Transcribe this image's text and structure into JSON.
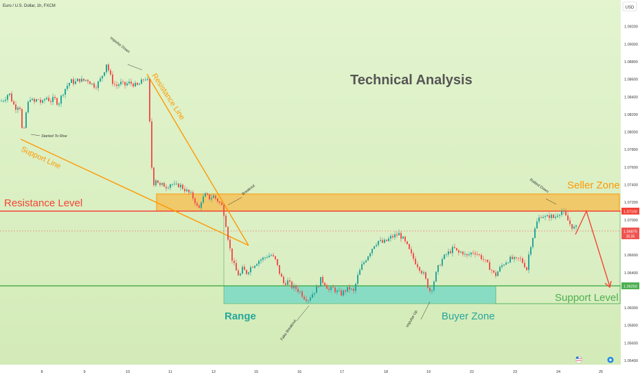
{
  "header": {
    "symbol_title": "Euro / U.S. Dollar, 1h, FXCM",
    "currency_badge": "USD"
  },
  "annotations": {
    "technical_analysis": "Technical Analysis",
    "impulse_down": "Impulse Down",
    "started_to_rise": "Started To Rise",
    "support_line": "Support Line",
    "resistance_line": "Resistance Line",
    "resistance_level": "Resistance Level",
    "breakout": "Breakout",
    "rallied_down": "Rallied Down",
    "seller_zone": "Seller Zone",
    "range": "Range",
    "fake_breakout": "Fake Breakout",
    "impulse_up": "Impulse Up",
    "buyer_zone": "Buyer Zone",
    "support_level": "Support Level"
  },
  "price_tags": {
    "resistance": "1.07100",
    "current_price": "1.06875",
    "countdown": "35:35",
    "support": "1.06250"
  },
  "colors": {
    "background_top": "#dff2c8",
    "background_bottom": "#d6edbd",
    "up_candle": "#26a69a",
    "down_candle": "#ef5350",
    "resistance": "#f44336",
    "support": "#4caf50",
    "orange": "#ff9800",
    "seller_zone_fill": "#f2c25a",
    "buyer_zone_fill": "#76d6bf",
    "text_gray": "#555555"
  },
  "chart_data": {
    "type": "candlestick",
    "title": "Euro / U.S. Dollar, 1h, FXCM",
    "x_tick_labels": [
      "8",
      "9",
      "10",
      "11",
      "12",
      "15",
      "16",
      "17",
      "18",
      "19",
      "22",
      "23",
      "24",
      "25"
    ],
    "y_tick_labels": [
      "1.09200",
      "1.09000",
      "1.08800",
      "1.08600",
      "1.08400",
      "1.08200",
      "1.08000",
      "1.07800",
      "1.07600",
      "1.07400",
      "1.07200",
      "1.07000",
      "1.06600",
      "1.06400",
      "1.06000",
      "1.05800",
      "1.05600",
      "1.05400"
    ],
    "ylim": [
      1.054,
      1.094
    ],
    "resistance_level": 1.071,
    "support_level": 1.0625,
    "current_price": 1.06875,
    "seller_zone": [
      1.071,
      1.0728
    ],
    "buyer_zone": [
      1.0605,
      1.0625
    ],
    "grid": false,
    "price_path": [
      {
        "x": 0,
        "p": 1.0835
      },
      {
        "x": 6,
        "p": 1.0838
      },
      {
        "x": 12,
        "p": 1.0845
      },
      {
        "x": 18,
        "p": 1.0832
      },
      {
        "x": 24,
        "p": 1.0826
      },
      {
        "x": 27,
        "p": 1.0838
      },
      {
        "x": 30,
        "p": 1.0808
      },
      {
        "x": 33,
        "p": 1.0795
      },
      {
        "x": 37,
        "p": 1.0822
      },
      {
        "x": 42,
        "p": 1.084
      },
      {
        "x": 48,
        "p": 1.0833
      },
      {
        "x": 54,
        "p": 1.0838
      },
      {
        "x": 60,
        "p": 1.0832
      },
      {
        "x": 66,
        "p": 1.084
      },
      {
        "x": 72,
        "p": 1.0835
      },
      {
        "x": 78,
        "p": 1.0838
      },
      {
        "x": 84,
        "p": 1.0832
      },
      {
        "x": 90,
        "p": 1.0844
      },
      {
        "x": 96,
        "p": 1.0852
      },
      {
        "x": 102,
        "p": 1.0858
      },
      {
        "x": 108,
        "p": 1.0856
      },
      {
        "x": 114,
        "p": 1.086
      },
      {
        "x": 120,
        "p": 1.0858
      },
      {
        "x": 126,
        "p": 1.086
      },
      {
        "x": 132,
        "p": 1.0855
      },
      {
        "x": 138,
        "p": 1.0852
      },
      {
        "x": 144,
        "p": 1.0858
      },
      {
        "x": 150,
        "p": 1.0868
      },
      {
        "x": 154,
        "p": 1.0878
      },
      {
        "x": 158,
        "p": 1.0868
      },
      {
        "x": 162,
        "p": 1.0858
      },
      {
        "x": 168,
        "p": 1.0852
      },
      {
        "x": 174,
        "p": 1.0856
      },
      {
        "x": 180,
        "p": 1.0853
      },
      {
        "x": 186,
        "p": 1.0856
      },
      {
        "x": 192,
        "p": 1.0855
      },
      {
        "x": 198,
        "p": 1.0852
      },
      {
        "x": 204,
        "p": 1.0856
      },
      {
        "x": 210,
        "p": 1.0862
      },
      {
        "x": 214,
        "p": 1.0858
      },
      {
        "x": 216,
        "p": 1.083
      },
      {
        "x": 218,
        "p": 1.079
      },
      {
        "x": 220,
        "p": 1.076
      },
      {
        "x": 223,
        "p": 1.0742
      },
      {
        "x": 227,
        "p": 1.0748
      },
      {
        "x": 231,
        "p": 1.0738
      },
      {
        "x": 236,
        "p": 1.074
      },
      {
        "x": 242,
        "p": 1.0738
      },
      {
        "x": 248,
        "p": 1.0742
      },
      {
        "x": 254,
        "p": 1.0738
      },
      {
        "x": 260,
        "p": 1.074
      },
      {
        "x": 266,
        "p": 1.0736
      },
      {
        "x": 272,
        "p": 1.0732
      },
      {
        "x": 278,
        "p": 1.0728
      },
      {
        "x": 284,
        "p": 1.072
      },
      {
        "x": 288,
        "p": 1.071
      },
      {
        "x": 292,
        "p": 1.0722
      },
      {
        "x": 298,
        "p": 1.0728
      },
      {
        "x": 304,
        "p": 1.0725
      },
      {
        "x": 310,
        "p": 1.0727
      },
      {
        "x": 316,
        "p": 1.0722
      },
      {
        "x": 322,
        "p": 1.0716
      },
      {
        "x": 326,
        "p": 1.0705
      },
      {
        "x": 329,
        "p": 1.069
      },
      {
        "x": 332,
        "p": 1.0675
      },
      {
        "x": 336,
        "p": 1.0658
      },
      {
        "x": 340,
        "p": 1.0648
      },
      {
        "x": 344,
        "p": 1.064
      },
      {
        "x": 348,
        "p": 1.0636
      },
      {
        "x": 352,
        "p": 1.0644
      },
      {
        "x": 358,
        "p": 1.064
      },
      {
        "x": 364,
        "p": 1.0646
      },
      {
        "x": 370,
        "p": 1.065
      },
      {
        "x": 376,
        "p": 1.0654
      },
      {
        "x": 382,
        "p": 1.0656
      },
      {
        "x": 388,
        "p": 1.0659
      },
      {
        "x": 394,
        "p": 1.066
      },
      {
        "x": 400,
        "p": 1.0654
      },
      {
        "x": 406,
        "p": 1.064
      },
      {
        "x": 412,
        "p": 1.0628
      },
      {
        "x": 418,
        "p": 1.063
      },
      {
        "x": 424,
        "p": 1.0624
      },
      {
        "x": 430,
        "p": 1.0622
      },
      {
        "x": 436,
        "p": 1.0618
      },
      {
        "x": 442,
        "p": 1.0612
      },
      {
        "x": 448,
        "p": 1.061
      },
      {
        "x": 454,
        "p": 1.0616
      },
      {
        "x": 460,
        "p": 1.0622
      },
      {
        "x": 466,
        "p": 1.0632
      },
      {
        "x": 472,
        "p": 1.0628
      },
      {
        "x": 478,
        "p": 1.062
      },
      {
        "x": 484,
        "p": 1.0622
      },
      {
        "x": 490,
        "p": 1.0618
      },
      {
        "x": 496,
        "p": 1.0616
      },
      {
        "x": 502,
        "p": 1.062
      },
      {
        "x": 508,
        "p": 1.0622
      },
      {
        "x": 514,
        "p": 1.0618
      },
      {
        "x": 520,
        "p": 1.0636
      },
      {
        "x": 526,
        "p": 1.0648
      },
      {
        "x": 532,
        "p": 1.0656
      },
      {
        "x": 538,
        "p": 1.0664
      },
      {
        "x": 544,
        "p": 1.0672
      },
      {
        "x": 550,
        "p": 1.0676
      },
      {
        "x": 556,
        "p": 1.0674
      },
      {
        "x": 562,
        "p": 1.0676
      },
      {
        "x": 568,
        "p": 1.068
      },
      {
        "x": 574,
        "p": 1.0682
      },
      {
        "x": 580,
        "p": 1.0684
      },
      {
        "x": 586,
        "p": 1.0678
      },
      {
        "x": 592,
        "p": 1.067
      },
      {
        "x": 598,
        "p": 1.066
      },
      {
        "x": 604,
        "p": 1.0652
      },
      {
        "x": 610,
        "p": 1.0645
      },
      {
        "x": 616,
        "p": 1.0638
      },
      {
        "x": 622,
        "p": 1.0625
      },
      {
        "x": 626,
        "p": 1.0618
      },
      {
        "x": 630,
        "p": 1.0628
      },
      {
        "x": 636,
        "p": 1.0644
      },
      {
        "x": 642,
        "p": 1.0654
      },
      {
        "x": 648,
        "p": 1.066
      },
      {
        "x": 654,
        "p": 1.0664
      },
      {
        "x": 660,
        "p": 1.0668
      },
      {
        "x": 666,
        "p": 1.0662
      },
      {
        "x": 672,
        "p": 1.0664
      },
      {
        "x": 678,
        "p": 1.0658
      },
      {
        "x": 684,
        "p": 1.0662
      },
      {
        "x": 690,
        "p": 1.0664
      },
      {
        "x": 696,
        "p": 1.066
      },
      {
        "x": 702,
        "p": 1.0656
      },
      {
        "x": 708,
        "p": 1.065
      },
      {
        "x": 714,
        "p": 1.0644
      },
      {
        "x": 720,
        "p": 1.0636
      },
      {
        "x": 726,
        "p": 1.0644
      },
      {
        "x": 732,
        "p": 1.065
      },
      {
        "x": 738,
        "p": 1.0654
      },
      {
        "x": 744,
        "p": 1.0656
      },
      {
        "x": 750,
        "p": 1.0654
      },
      {
        "x": 756,
        "p": 1.0656
      },
      {
        "x": 762,
        "p": 1.065
      },
      {
        "x": 766,
        "p": 1.0644
      },
      {
        "x": 770,
        "p": 1.0666
      },
      {
        "x": 776,
        "p": 1.0684
      },
      {
        "x": 782,
        "p": 1.07
      },
      {
        "x": 788,
        "p": 1.0706
      },
      {
        "x": 794,
        "p": 1.0702
      },
      {
        "x": 800,
        "p": 1.0705
      },
      {
        "x": 806,
        "p": 1.0702
      },
      {
        "x": 812,
        "p": 1.0708
      },
      {
        "x": 818,
        "p": 1.071
      },
      {
        "x": 824,
        "p": 1.0702
      },
      {
        "x": 830,
        "p": 1.0694
      },
      {
        "x": 836,
        "p": 1.069
      },
      {
        "x": 840,
        "p": 1.0692
      }
    ]
  }
}
